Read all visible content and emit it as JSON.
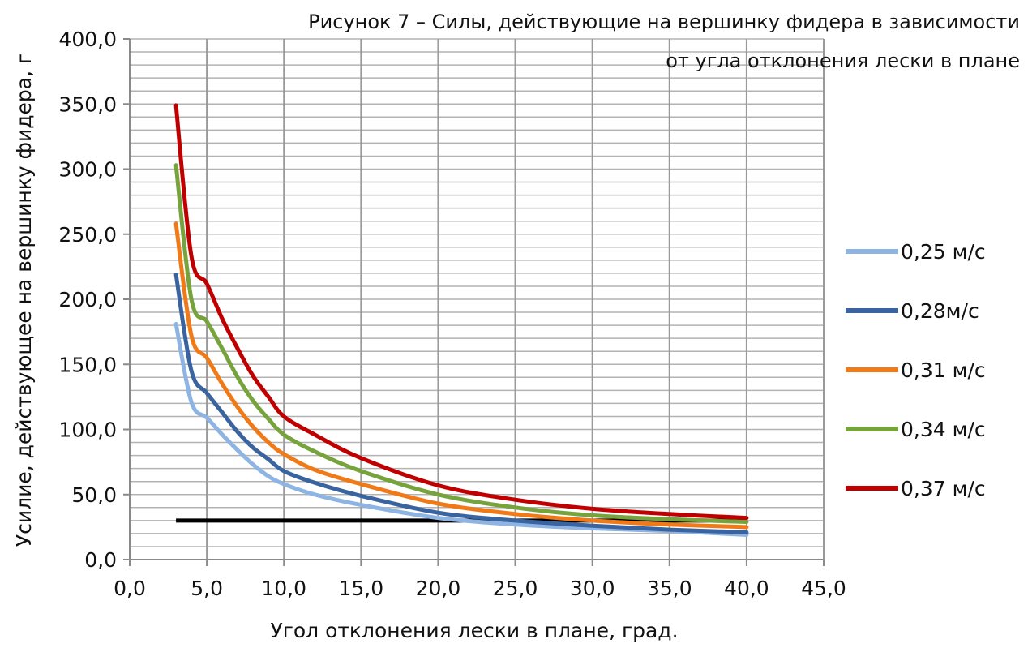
{
  "chart_data": {
    "type": "line",
    "title_line1": "Рисунок 7 – Силы, действующие на вершинку фидера в зависимости",
    "title_line2": "от угла отклонения лески в плане",
    "xlabel": "Угол отклонения лески в плане, град.",
    "ylabel": "Усилие, действующее на вершинку фидера, г",
    "xlim": [
      0,
      45
    ],
    "ylim": [
      0,
      400
    ],
    "x_ticks": [
      "0,0",
      "5,0",
      "10,0",
      "15,0",
      "20,0",
      "25,0",
      "30,0",
      "35,0",
      "40,0",
      "45,0"
    ],
    "y_ticks": [
      "0,0",
      "50,0",
      "100,0",
      "150,0",
      "200,0",
      "250,0",
      "300,0",
      "350,0",
      "400,0"
    ],
    "grid": true,
    "legend_position": "right",
    "x": [
      3,
      4,
      5,
      6,
      7,
      8,
      9,
      10,
      12,
      15,
      20,
      25,
      30,
      35,
      40
    ],
    "series": [
      {
        "name": "0,25 м/с",
        "color": "#8db4e2",
        "values": [
          181,
          121,
          109,
          96,
          84,
          73,
          64,
          58,
          50,
          42,
          32,
          27,
          24,
          22,
          19
        ]
      },
      {
        "name": "0,28м/с",
        "color": "#3a64a0",
        "values": [
          219,
          145,
          128,
          113,
          98,
          86,
          77,
          68,
          59,
          49,
          36,
          30,
          26,
          23,
          21
        ]
      },
      {
        "name": "0,31 м/с",
        "color": "#f07a18",
        "values": [
          258,
          172,
          155,
          135,
          117,
          102,
          90,
          81,
          69,
          58,
          43,
          35,
          30,
          27,
          25
        ]
      },
      {
        "name": "0,34 м/с",
        "color": "#77a33c",
        "values": [
          303,
          200,
          183,
          162,
          140,
          122,
          108,
          96,
          83,
          68,
          50,
          40,
          34,
          31,
          29
        ]
      },
      {
        "name": "0,37 м/с",
        "color": "#c00000",
        "values": [
          349,
          233,
          212,
          185,
          162,
          141,
          125,
          110,
          96,
          78,
          57,
          46,
          39,
          35,
          32
        ]
      }
    ],
    "reference_line": {
      "color": "#000000",
      "x": [
        3,
        40
      ],
      "values": [
        30,
        30
      ]
    }
  }
}
